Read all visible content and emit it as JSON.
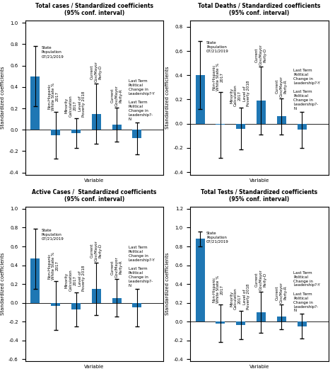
{
  "chart_data": [
    {
      "type": "bar",
      "title": "Total cases / Standardized coefficients\n(95% conf. interval)",
      "x_label": "Variable",
      "y_label": "Standardized coefficients",
      "categories": [
        null,
        null,
        null,
        null,
        null,
        null
      ],
      "values": [
        0.5,
        -0.05,
        -0.03,
        0.15,
        0.05,
        -0.08
      ],
      "err_low": [
        0.28,
        0.22,
        0.14,
        0.28,
        0.16,
        0.15
      ],
      "err_high": [
        0.28,
        0.22,
        0.14,
        0.28,
        0.16,
        0.15
      ],
      "ylim": [
        -0.42,
        1.02
      ],
      "yticks": [
        -0.4,
        -0.2,
        {
          "value": 0,
          "label": "0.0"
        },
        0.2,
        0.4,
        0.6,
        0.8,
        {
          "value": 1,
          "label": "1.0"
        }
      ],
      "grid": false,
      "annotations": [
        "State\nPopulation\n07/21/2019",
        "Non-Hispanic\nWhite State %\n2017",
        "Minority\nCalculation\n2017",
        "Level of\nPoverty 2018",
        "Current\nGov/Mayor\nParty-D",
        "Current\nGov/Mayor\nParty-R",
        "Last Term\nPolitical\nChange in\nLeadership?-Y",
        "Last Term\nPolitical\nChange in\nLeadership?-\nN"
      ]
    },
    {
      "type": "bar",
      "title": "Total Deaths / Standardized coefficients\n(95% conf. interval)",
      "x_label": "Variable",
      "y_label": "Standardized coefficients",
      "categories": [
        null,
        null,
        null,
        null,
        null,
        null
      ],
      "values": [
        0.4,
        -0.01,
        -0.04,
        0.19,
        0.06,
        -0.05
      ],
      "err_low": [
        0.28,
        0.27,
        0.17,
        0.28,
        0.15,
        0.15
      ],
      "err_high": [
        0.28,
        0.27,
        0.17,
        0.28,
        0.15,
        0.15
      ],
      "ylim": [
        -0.42,
        0.85
      ],
      "yticks": [
        -0.4,
        -0.2,
        {
          "value": 0,
          "label": "0.0"
        },
        0.2,
        0.4,
        0.6,
        0.8
      ],
      "grid": false,
      "annotations": [
        "State\nPopulation\n07/21/2019",
        "Non-Hispanic\nWhite State %\n2017",
        "Minority\nCalculation\n2017",
        "Level of\nPoverty 2018",
        "Current\nGov/Mayor\nParty-D",
        "Current\nGov/Mayor\nParty-R",
        "Last Term\nPolitical\nChange in\nLeadership?-Y",
        "Last Term\nPolitical\nChange in\nLeadership?-\nN"
      ]
    },
    {
      "type": "bar",
      "title": "Active Cases /  Standardized coefficients\n(95% conf. interval)",
      "x_label": "Variable",
      "y_label": "Standardized coefficients",
      "categories": [
        null,
        null,
        null,
        null,
        null,
        null
      ],
      "values": [
        0.47,
        -0.03,
        -0.07,
        0.15,
        0.05,
        -0.05
      ],
      "err_low": [
        0.32,
        0.26,
        0.18,
        0.28,
        0.2,
        0.2
      ],
      "err_high": [
        0.32,
        0.26,
        0.18,
        0.28,
        0.2,
        0.2
      ],
      "ylim": [
        -0.62,
        1.02
      ],
      "yticks": [
        -0.6,
        -0.4,
        -0.2,
        {
          "value": 0,
          "label": "0.0"
        },
        0.2,
        0.4,
        0.6,
        0.8,
        {
          "value": 1,
          "label": "1.0"
        }
      ],
      "grid": false,
      "annotations": [
        "State\nPopulation\n07/21/2019",
        "Non-Hispanic\nWhite State %\n2017",
        "Minority\nCalculation\n2017",
        "Level of\nPoverty 2018",
        "Current\nGov/Mayor\nParty-D",
        "Current\nGov/Mayor\nParty-R",
        "Last Term\nPolitical\nChange in\nLeadership?-Y",
        "Last Term\nPolitical\nChange in\nLeadership?-\nN"
      ]
    },
    {
      "type": "bar",
      "title": "Total Tests / Standardized coefficients\n(95% conf. interval)",
      "x_label": "Variable",
      "y_label": "Standardized coefficients",
      "categories": [
        null,
        null,
        null,
        null,
        null,
        null
      ],
      "values": [
        0.88,
        -0.02,
        -0.04,
        0.1,
        0.05,
        -0.05
      ],
      "err_low": [
        0.08,
        0.2,
        0.15,
        0.22,
        0.13,
        0.13
      ],
      "err_high": [
        0.08,
        0.2,
        0.15,
        0.22,
        0.13,
        0.13
      ],
      "ylim": [
        -0.42,
        1.22
      ],
      "yticks": [
        -0.4,
        -0.2,
        {
          "value": 0,
          "label": "0.0"
        },
        0.2,
        0.4,
        0.6,
        0.8,
        {
          "value": 1,
          "label": "1.0"
        },
        1.2
      ],
      "grid": false,
      "annotations": [
        "State\nPopulation\n07/21/2019",
        "Non-Hispanic\nWhite State %\n2017",
        "Minority\nCalculation\n2017",
        "Level of\nPoverty 2018",
        "Current\nGov/Mayor\nParty-D",
        "Current\nGov/Mayor\nParty-R",
        "Last Term\nPolitical\nChange in\nLeadership?-Y",
        "Last Term\nPolitical\nChange in\nLeadership?-\nN"
      ]
    }
  ]
}
